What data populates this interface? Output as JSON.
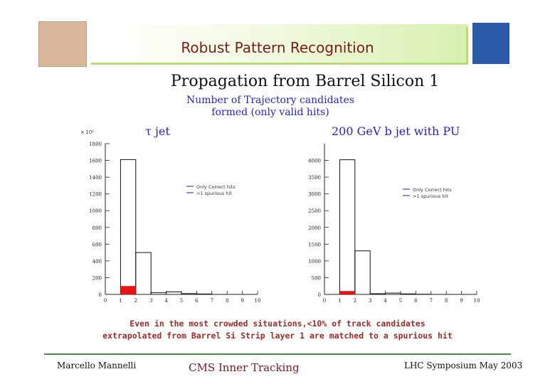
{
  "slide": {
    "title": "Robust Pattern Recognition",
    "main_title": "Propagation from Barrel Silicon 1",
    "subtitle_line1": "Number of Trajectory candidates",
    "subtitle_line2": "formed (only valid hits)",
    "caption_line1": "Even in the most crowded situations,<10% of track candidates",
    "caption_line2": "extrapolated from Barrel Si Strip layer 1 are matched to a spurious hit",
    "footer_left": "Marcello Mannelli",
    "footer_center": "CMS Inner Tracking",
    "footer_right": "LHC Symposium May 2003",
    "accent_color": "#b7dc72"
  },
  "chart_data": [
    {
      "type": "bar",
      "title": "τ jet",
      "multiplier_label": "x 10²",
      "ylim": [
        0,
        1800
      ],
      "xlim": [
        0,
        10
      ],
      "yticks": [
        0,
        200,
        400,
        600,
        800,
        1000,
        1200,
        1400,
        1600,
        1800
      ],
      "xticks": [
        0,
        1,
        2,
        3,
        4,
        5,
        6,
        7,
        8,
        9,
        10
      ],
      "legend": [
        "Only Correct hits",
        ">1 spurious hit"
      ],
      "series": [
        {
          "name": "Only Correct hits",
          "x": [
            1,
            2,
            3,
            4,
            5,
            6
          ],
          "values": [
            1610,
            500,
            20,
            30,
            10,
            5
          ]
        },
        {
          "name": ">1 spurious hit",
          "x": [
            1
          ],
          "values": [
            100
          ]
        }
      ]
    },
    {
      "type": "bar",
      "title": "200 GeV b jet with PU",
      "ylim": [
        0,
        4500
      ],
      "xlim": [
        0,
        10
      ],
      "yticks": [
        0,
        500,
        1000,
        1500,
        2000,
        2500,
        3000,
        3500,
        4000
      ],
      "xticks": [
        0,
        1,
        2,
        3,
        4,
        5,
        6,
        7,
        8,
        9,
        10
      ],
      "legend": [
        "Only Correct hits",
        ">1 spurious hit"
      ],
      "series": [
        {
          "name": "Only Correct hits",
          "x": [
            1,
            2,
            3,
            4,
            5,
            6
          ],
          "values": [
            4020,
            1300,
            20,
            40,
            15,
            5
          ]
        },
        {
          "name": ">1 spurious hit",
          "x": [
            1
          ],
          "values": [
            100
          ]
        }
      ]
    }
  ]
}
